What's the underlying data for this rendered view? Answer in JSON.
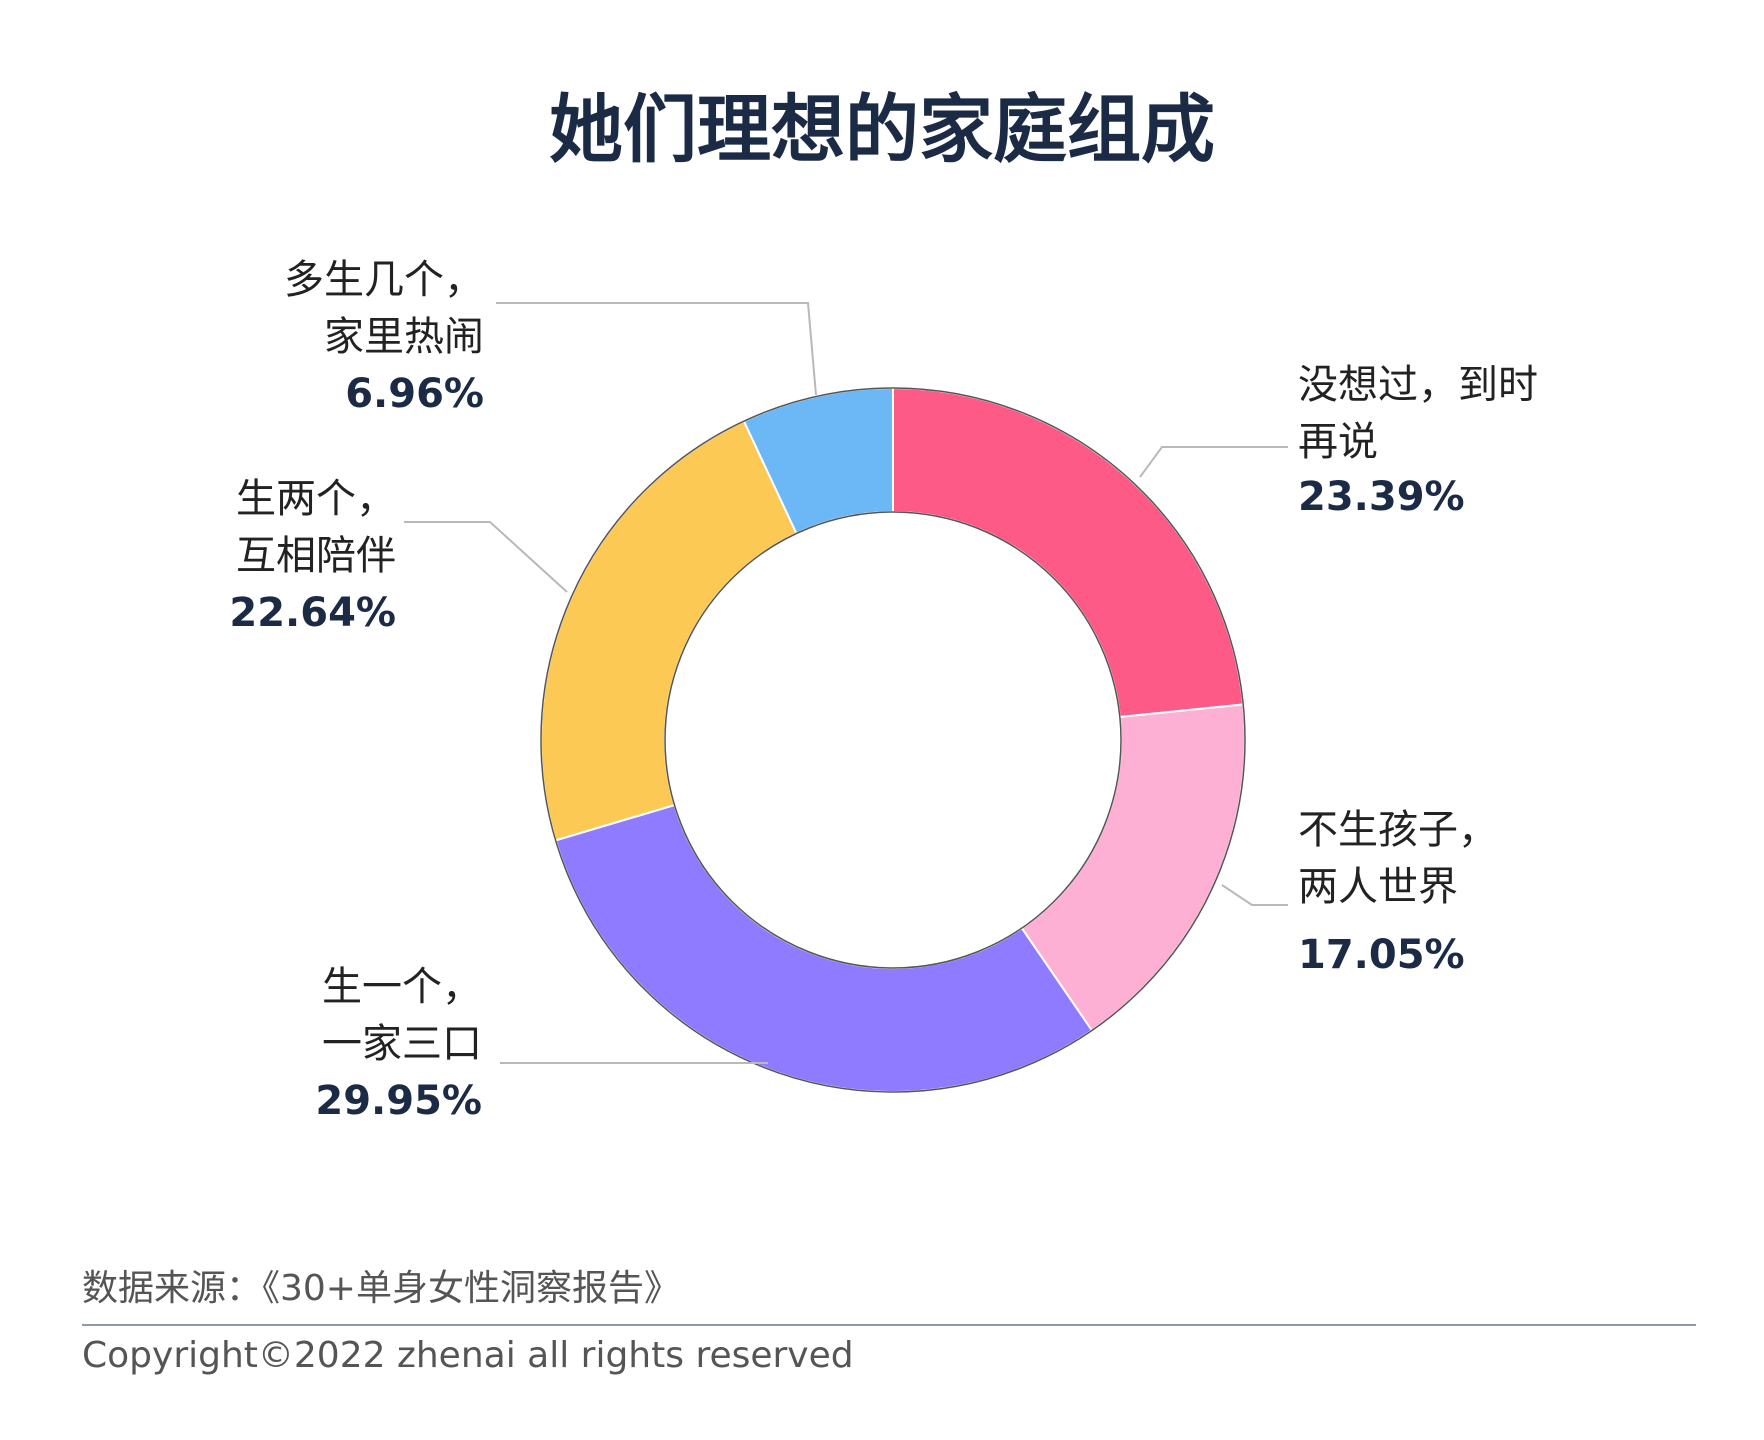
{
  "chart_data": {
    "type": "pie",
    "style": "donut",
    "title": "她们理想的家庭组成",
    "slices": [
      {
        "label_lines": [
          "没想过，到时",
          "再说"
        ],
        "value": 23.39,
        "value_text": "23.39%",
        "color": "#fd5a87"
      },
      {
        "label_lines": [
          "不生孩子，",
          "两人世界"
        ],
        "value": 17.05,
        "value_text": "17.05%",
        "color": "#fdafd4"
      },
      {
        "label_lines": [
          "生一个，",
          "一家三口"
        ],
        "value": 29.95,
        "value_text": "29.95%",
        "color": "#8e7bff"
      },
      {
        "label_lines": [
          "生两个，",
          "互相陪伴"
        ],
        "value": 22.64,
        "value_text": "22.64%",
        "color": "#fdc955"
      },
      {
        "label_lines": [
          "多生几个，",
          "家里热闹"
        ],
        "value": 6.96,
        "value_text": "6.96%",
        "color": "#6cb8f7"
      }
    ]
  },
  "footer": {
    "source": "数据来源：《30+单身女性洞察报告》",
    "copyright": "Copyright©2022  zhenai  all rights reserved"
  }
}
